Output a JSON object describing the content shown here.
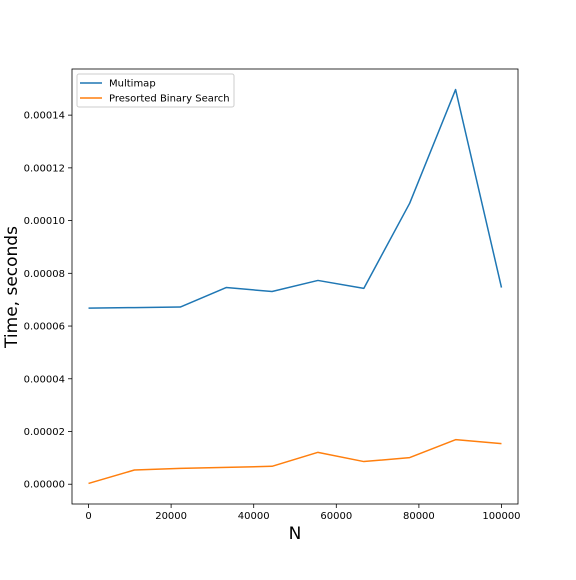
{
  "chart_data": {
    "type": "line",
    "title": "",
    "xlabel": "N",
    "ylabel": "Time, seconds",
    "xlim": [
      -4000,
      104000
    ],
    "ylim": [
      -7.5e-06,
      0.0001575
    ],
    "x_ticks": [
      0,
      20000,
      40000,
      60000,
      80000,
      100000
    ],
    "x_tick_labels": [
      "0",
      "20000",
      "40000",
      "60000",
      "80000",
      "100000"
    ],
    "y_ticks": [
      0.0,
      2e-05,
      4e-05,
      6e-05,
      8e-05,
      0.0001,
      0.00012,
      0.00014
    ],
    "y_tick_labels": [
      "0.00000",
      "0.00002",
      "0.00004",
      "0.00006",
      "0.00008",
      "0.00010",
      "0.00012",
      "0.00014"
    ],
    "grid": false,
    "legend_position": "top-left",
    "series": [
      {
        "name": "Multimap",
        "color": "#1f77b4",
        "x": [
          0,
          11111,
          22222,
          33333,
          44444,
          55555,
          66666,
          77777,
          88888,
          100000
        ],
        "y": [
          6.68e-05,
          6.7e-05,
          6.72e-05,
          7.46e-05,
          7.31e-05,
          7.73e-05,
          7.43e-05,
          0.0001066,
          0.0001497,
          7.46e-05
        ]
      },
      {
        "name": "Presorted Binary Search",
        "color": "#ff7f0e",
        "x": [
          0,
          11111,
          22222,
          33333,
          44444,
          55555,
          66666,
          77777,
          88888,
          100000
        ],
        "y": [
          3e-07,
          5.4e-06,
          6e-06,
          6.4e-06,
          6.8e-06,
          1.21e-05,
          8.6e-06,
          1.01e-05,
          1.69e-05,
          1.54e-05
        ]
      }
    ]
  }
}
